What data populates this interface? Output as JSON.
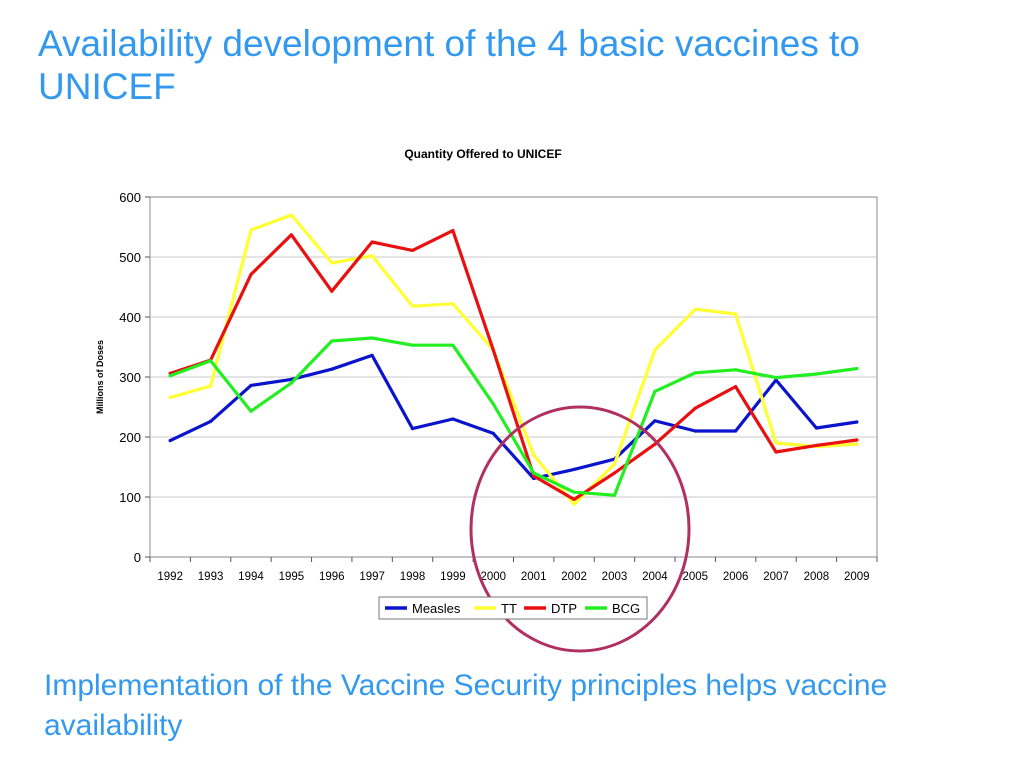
{
  "slide": {
    "title": "Availability development of the 4 basic vaccines to UNICEF",
    "footer": "Implementation of the Vaccine Security principles helps vaccine availability"
  },
  "chart_data": {
    "type": "line",
    "title": "Quantity Offered to UNICEF",
    "xlabel": "",
    "ylabel": "Millions of Doses",
    "ylim": [
      0,
      600
    ],
    "yticks": [
      0,
      100,
      200,
      300,
      400,
      500,
      600
    ],
    "grid": true,
    "legend_position": "bottom",
    "categories": [
      "1992",
      "1993",
      "1994",
      "1995",
      "1996",
      "1997",
      "1998",
      "1999",
      "2000",
      "2001",
      "2002",
      "2003",
      "2004",
      "2005",
      "2006",
      "2007",
      "2008",
      "2009"
    ],
    "series": [
      {
        "name": "Measles",
        "color": "#0a14cc",
        "values": [
          194,
          226,
          286,
          296,
          313,
          336,
          214,
          230,
          206,
          131,
          146,
          163,
          227,
          210,
          210,
          295,
          215,
          225
        ]
      },
      {
        "name": "TT",
        "color": "#ffff33",
        "values": [
          266,
          285,
          545,
          570,
          490,
          502,
          418,
          422,
          345,
          170,
          88,
          155,
          345,
          413,
          405,
          190,
          184,
          188
        ]
      },
      {
        "name": "DTP",
        "color": "#e81010",
        "values": [
          306,
          328,
          471,
          537,
          443,
          525,
          511,
          544,
          345,
          135,
          96,
          140,
          188,
          248,
          284,
          175,
          186,
          195
        ]
      },
      {
        "name": "BCG",
        "color": "#22ee22",
        "values": [
          302,
          327,
          243,
          290,
          360,
          365,
          353,
          353,
          255,
          140,
          108,
          103,
          276,
          307,
          312,
          299,
          305,
          314
        ]
      }
    ],
    "annotation": {
      "shape": "circle",
      "color": "#b03060",
      "highlights": [
        "2001",
        "2002",
        "2003"
      ]
    }
  }
}
